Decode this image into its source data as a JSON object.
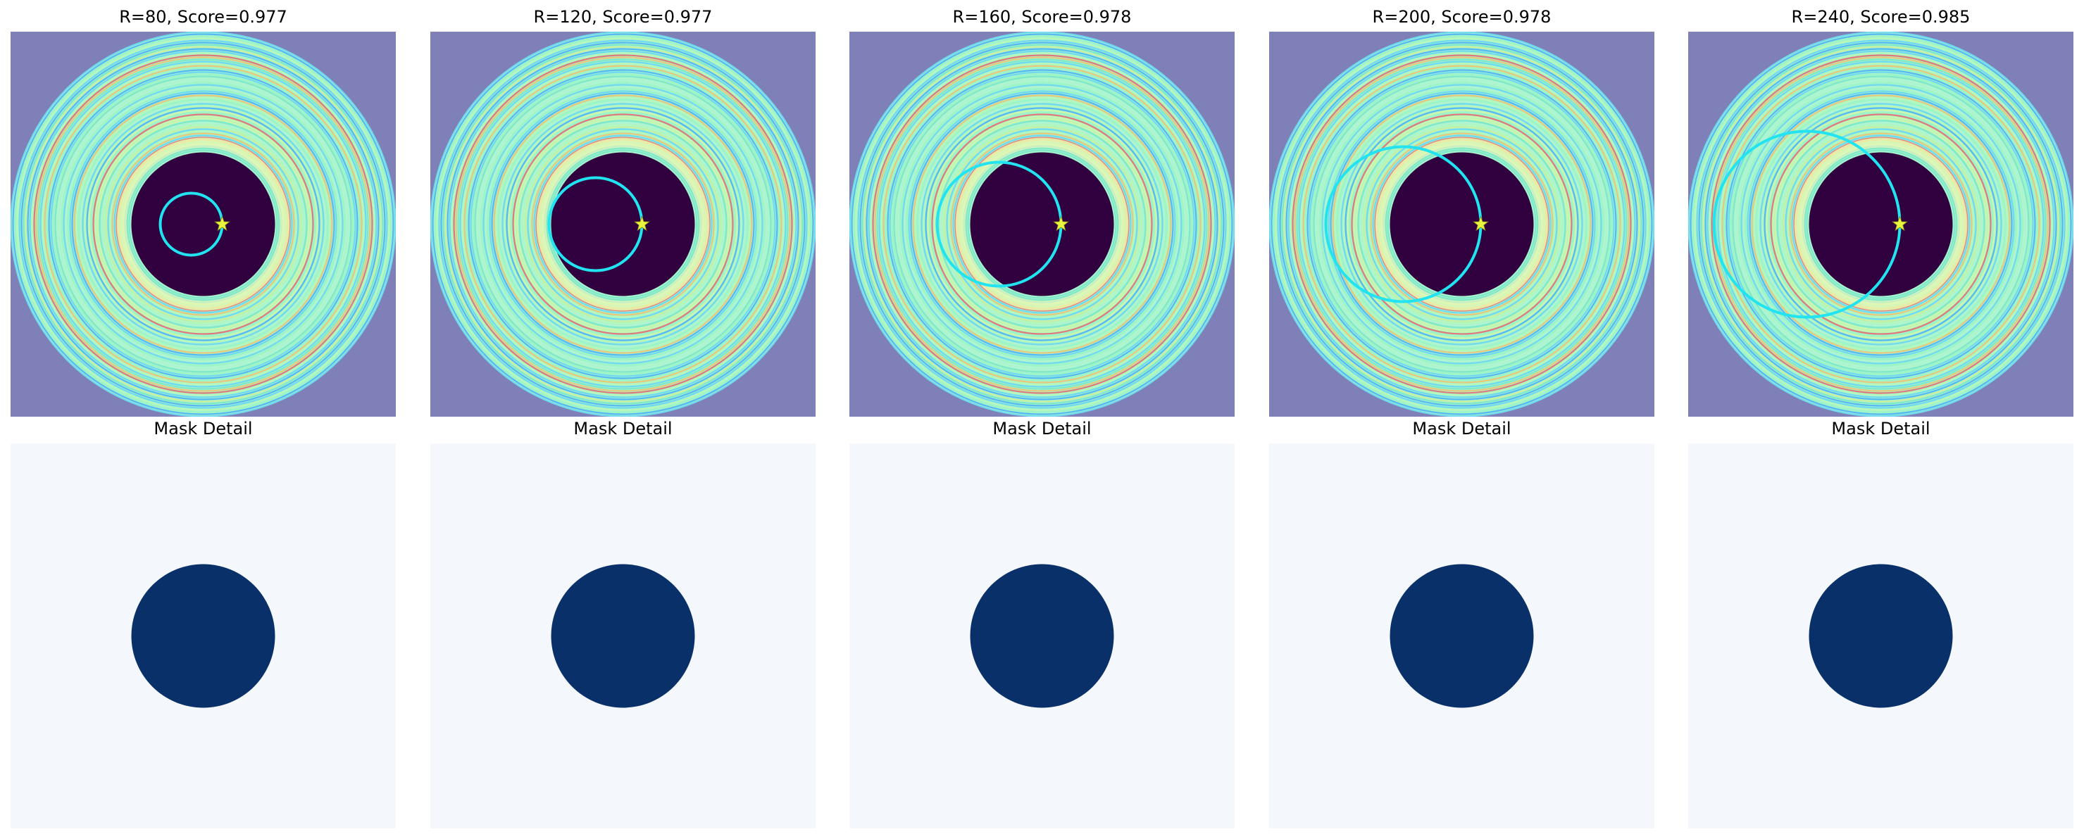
{
  "top_row": [
    {
      "title": "R=80, Score=0.977",
      "R": 80,
      "score": 0.977
    },
    {
      "title": "R=120, Score=0.977",
      "R": 120,
      "score": 0.977
    },
    {
      "title": "R=160, Score=0.978",
      "R": 160,
      "score": 0.978
    },
    {
      "title": "R=200, Score=0.978",
      "R": 200,
      "score": 0.978
    },
    {
      "title": "R=240, Score=0.985",
      "R": 240,
      "score": 0.985
    }
  ],
  "bottom_row": [
    {
      "title": "Mask Detail"
    },
    {
      "title": "Mask Detail"
    },
    {
      "title": "Mask Detail"
    },
    {
      "title": "Mask Detail"
    },
    {
      "title": "Mask Detail"
    }
  ],
  "colors": {
    "background_outside": "#8080b9",
    "inner_disk": "#30003f",
    "circle_overlay": "#22e4f0",
    "star_marker": "#e8f53c",
    "mask_background": "#f4f8fd",
    "mask_disk": "#0a3069"
  },
  "icons": {
    "marker": "star-icon"
  }
}
